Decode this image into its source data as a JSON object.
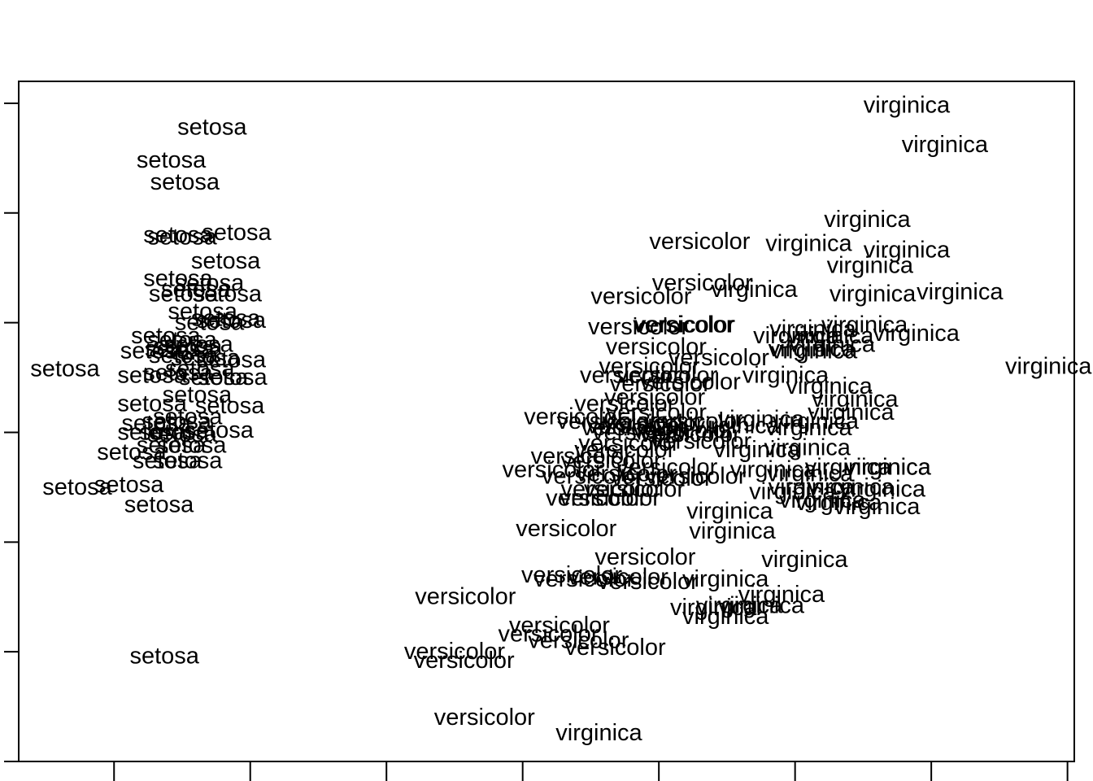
{
  "chart_data": {
    "type": "scatter",
    "title": "",
    "xlabel": "",
    "ylabel": "",
    "xlim": [
      -4.2,
      3.55
    ],
    "ylim": [
      -1.5,
      1.6
    ],
    "grid": false,
    "legend": "none",
    "colors": {
      "text": "#000000",
      "axis": "#000000",
      "background": "#ffffff"
    },
    "series": [
      {
        "name": "setosa",
        "points": [
          [
            -2.78,
            1.39
          ],
          [
            -3.08,
            1.24
          ],
          [
            -2.98,
            1.14
          ],
          [
            -3.03,
            0.9
          ],
          [
            -3.0,
            0.89
          ],
          [
            -2.6,
            0.91
          ],
          [
            -2.68,
            0.78
          ],
          [
            -3.03,
            0.7
          ],
          [
            -2.8,
            0.68
          ],
          [
            -2.9,
            0.65
          ],
          [
            -2.99,
            0.63
          ],
          [
            -2.67,
            0.63
          ],
          [
            -2.85,
            0.55
          ],
          [
            -2.68,
            0.52
          ],
          [
            -2.8,
            0.5
          ],
          [
            -2.64,
            0.51
          ],
          [
            -3.12,
            0.44
          ],
          [
            -3.0,
            0.42
          ],
          [
            -2.96,
            0.39
          ],
          [
            -2.88,
            0.4
          ],
          [
            -3.2,
            0.37
          ],
          [
            -3.02,
            0.38
          ],
          [
            -2.99,
            0.35
          ],
          [
            -2.83,
            0.34
          ],
          [
            -2.64,
            0.33
          ],
          [
            -3.86,
            0.29
          ],
          [
            -2.87,
            0.29
          ],
          [
            -3.22,
            0.26
          ],
          [
            -3.03,
            0.27
          ],
          [
            -2.77,
            0.25
          ],
          [
            -2.63,
            0.25
          ],
          [
            -2.89,
            0.17
          ],
          [
            -3.22,
            0.13
          ],
          [
            -2.65,
            0.12
          ],
          [
            -3.19,
            0.04
          ],
          [
            -3.04,
            0.05
          ],
          [
            -2.96,
            0.07
          ],
          [
            -2.73,
            0.01
          ],
          [
            -3.22,
            -0.0
          ],
          [
            -3.06,
            0.0
          ],
          [
            -3.0,
            -0.01
          ],
          [
            -3.08,
            -0.06
          ],
          [
            -2.93,
            -0.06
          ],
          [
            -3.37,
            -0.09
          ],
          [
            -3.11,
            -0.13
          ],
          [
            -2.96,
            -0.13
          ],
          [
            -3.77,
            -0.25
          ],
          [
            -3.39,
            -0.24
          ],
          [
            -3.17,
            -0.33
          ],
          [
            -3.13,
            -1.02
          ]
        ]
      },
      {
        "name": "versicolor",
        "points": [
          [
            0.8,
            0.87
          ],
          [
            0.82,
            0.68
          ],
          [
            0.37,
            0.62
          ],
          [
            0.69,
            0.49
          ],
          [
            0.68,
            0.49
          ],
          [
            0.35,
            0.48
          ],
          [
            0.48,
            0.39
          ],
          [
            0.94,
            0.34
          ],
          [
            0.43,
            0.3
          ],
          [
            0.29,
            0.26
          ],
          [
            0.56,
            0.26
          ],
          [
            0.51,
            0.22
          ],
          [
            0.73,
            0.23
          ],
          [
            0.47,
            0.16
          ],
          [
            0.25,
            0.13
          ],
          [
            0.48,
            0.09
          ],
          [
            0.76,
            0.05
          ],
          [
            0.3,
            0.02
          ],
          [
            0.46,
            0.04
          ],
          [
            0.68,
            0.01
          ],
          [
            0.38,
            -0.0
          ],
          [
            0.73,
            -0.01
          ],
          [
            -0.12,
            0.07
          ],
          [
            0.12,
            0.05
          ],
          [
            0.34,
            0.03
          ],
          [
            0.81,
            -0.04
          ],
          [
            0.28,
            -0.05
          ],
          [
            0.25,
            -0.08
          ],
          [
            -0.07,
            -0.11
          ],
          [
            0.15,
            -0.13
          ],
          [
            -0.28,
            -0.17
          ],
          [
            0.56,
            -0.16
          ],
          [
            0.26,
            -0.19
          ],
          [
            0.01,
            -0.2
          ],
          [
            0.32,
            -0.26
          ],
          [
            0.15,
            -0.26
          ],
          [
            0.04,
            -0.3
          ],
          [
            0.14,
            -0.3
          ],
          [
            0.77,
            -0.2
          ],
          [
            0.52,
            -0.21
          ],
          [
            -0.18,
            -0.44
          ],
          [
            0.4,
            -0.57
          ],
          [
            -0.14,
            -0.65
          ],
          [
            -0.05,
            -0.67
          ],
          [
            0.2,
            -0.66
          ],
          [
            0.42,
            -0.68
          ],
          [
            -0.92,
            -0.75
          ],
          [
            -0.23,
            -0.88
          ],
          [
            -0.31,
            -0.92
          ],
          [
            -0.09,
            -0.95
          ],
          [
            0.18,
            -0.98
          ],
          [
            -1.0,
            -1.0
          ],
          [
            -0.93,
            -1.04
          ],
          [
            -0.78,
            -1.3
          ]
        ]
      },
      {
        "name": "virginica",
        "points": [
          [
            2.32,
            1.49
          ],
          [
            2.6,
            1.31
          ],
          [
            2.03,
            0.97
          ],
          [
            2.32,
            0.83
          ],
          [
            1.6,
            0.86
          ],
          [
            2.05,
            0.76
          ],
          [
            1.2,
            0.65
          ],
          [
            2.07,
            0.63
          ],
          [
            2.71,
            0.64
          ],
          [
            2.01,
            0.49
          ],
          [
            1.63,
            0.47
          ],
          [
            1.51,
            0.44
          ],
          [
            1.76,
            0.44
          ],
          [
            2.39,
            0.45
          ],
          [
            1.62,
            0.38
          ],
          [
            1.64,
            0.37
          ],
          [
            1.77,
            0.4
          ],
          [
            1.43,
            0.26
          ],
          [
            3.36,
            0.3
          ],
          [
            1.94,
            0.15
          ],
          [
            1.75,
            0.21
          ],
          [
            1.25,
            0.06
          ],
          [
            1.65,
            0.05
          ],
          [
            1.91,
            0.09
          ],
          [
            1.6,
            0.02
          ],
          [
            1.07,
            0.03
          ],
          [
            1.59,
            -0.07
          ],
          [
            1.22,
            -0.08
          ],
          [
            1.34,
            -0.17
          ],
          [
            1.61,
            -0.19
          ],
          [
            1.89,
            -0.16
          ],
          [
            2.18,
            -0.16
          ],
          [
            1.91,
            -0.25
          ],
          [
            2.18,
            -0.16
          ],
          [
            1.02,
            -0.36
          ],
          [
            1.62,
            -0.25
          ],
          [
            1.04,
            -0.45
          ],
          [
            1.57,
            -0.58
          ],
          [
            0.99,
            -0.67
          ],
          [
            1.4,
            -0.74
          ],
          [
            1.09,
            -0.79
          ],
          [
            1.25,
            -0.79
          ],
          [
            0.9,
            -0.8
          ],
          [
            0.99,
            -0.84
          ],
          [
            2.14,
            -0.26
          ],
          [
            1.7,
            -0.31
          ],
          [
            1.82,
            -0.32
          ],
          [
            1.48,
            -0.27
          ],
          [
            2.1,
            -0.34
          ],
          [
            0.06,
            -1.37
          ]
        ]
      }
    ]
  }
}
